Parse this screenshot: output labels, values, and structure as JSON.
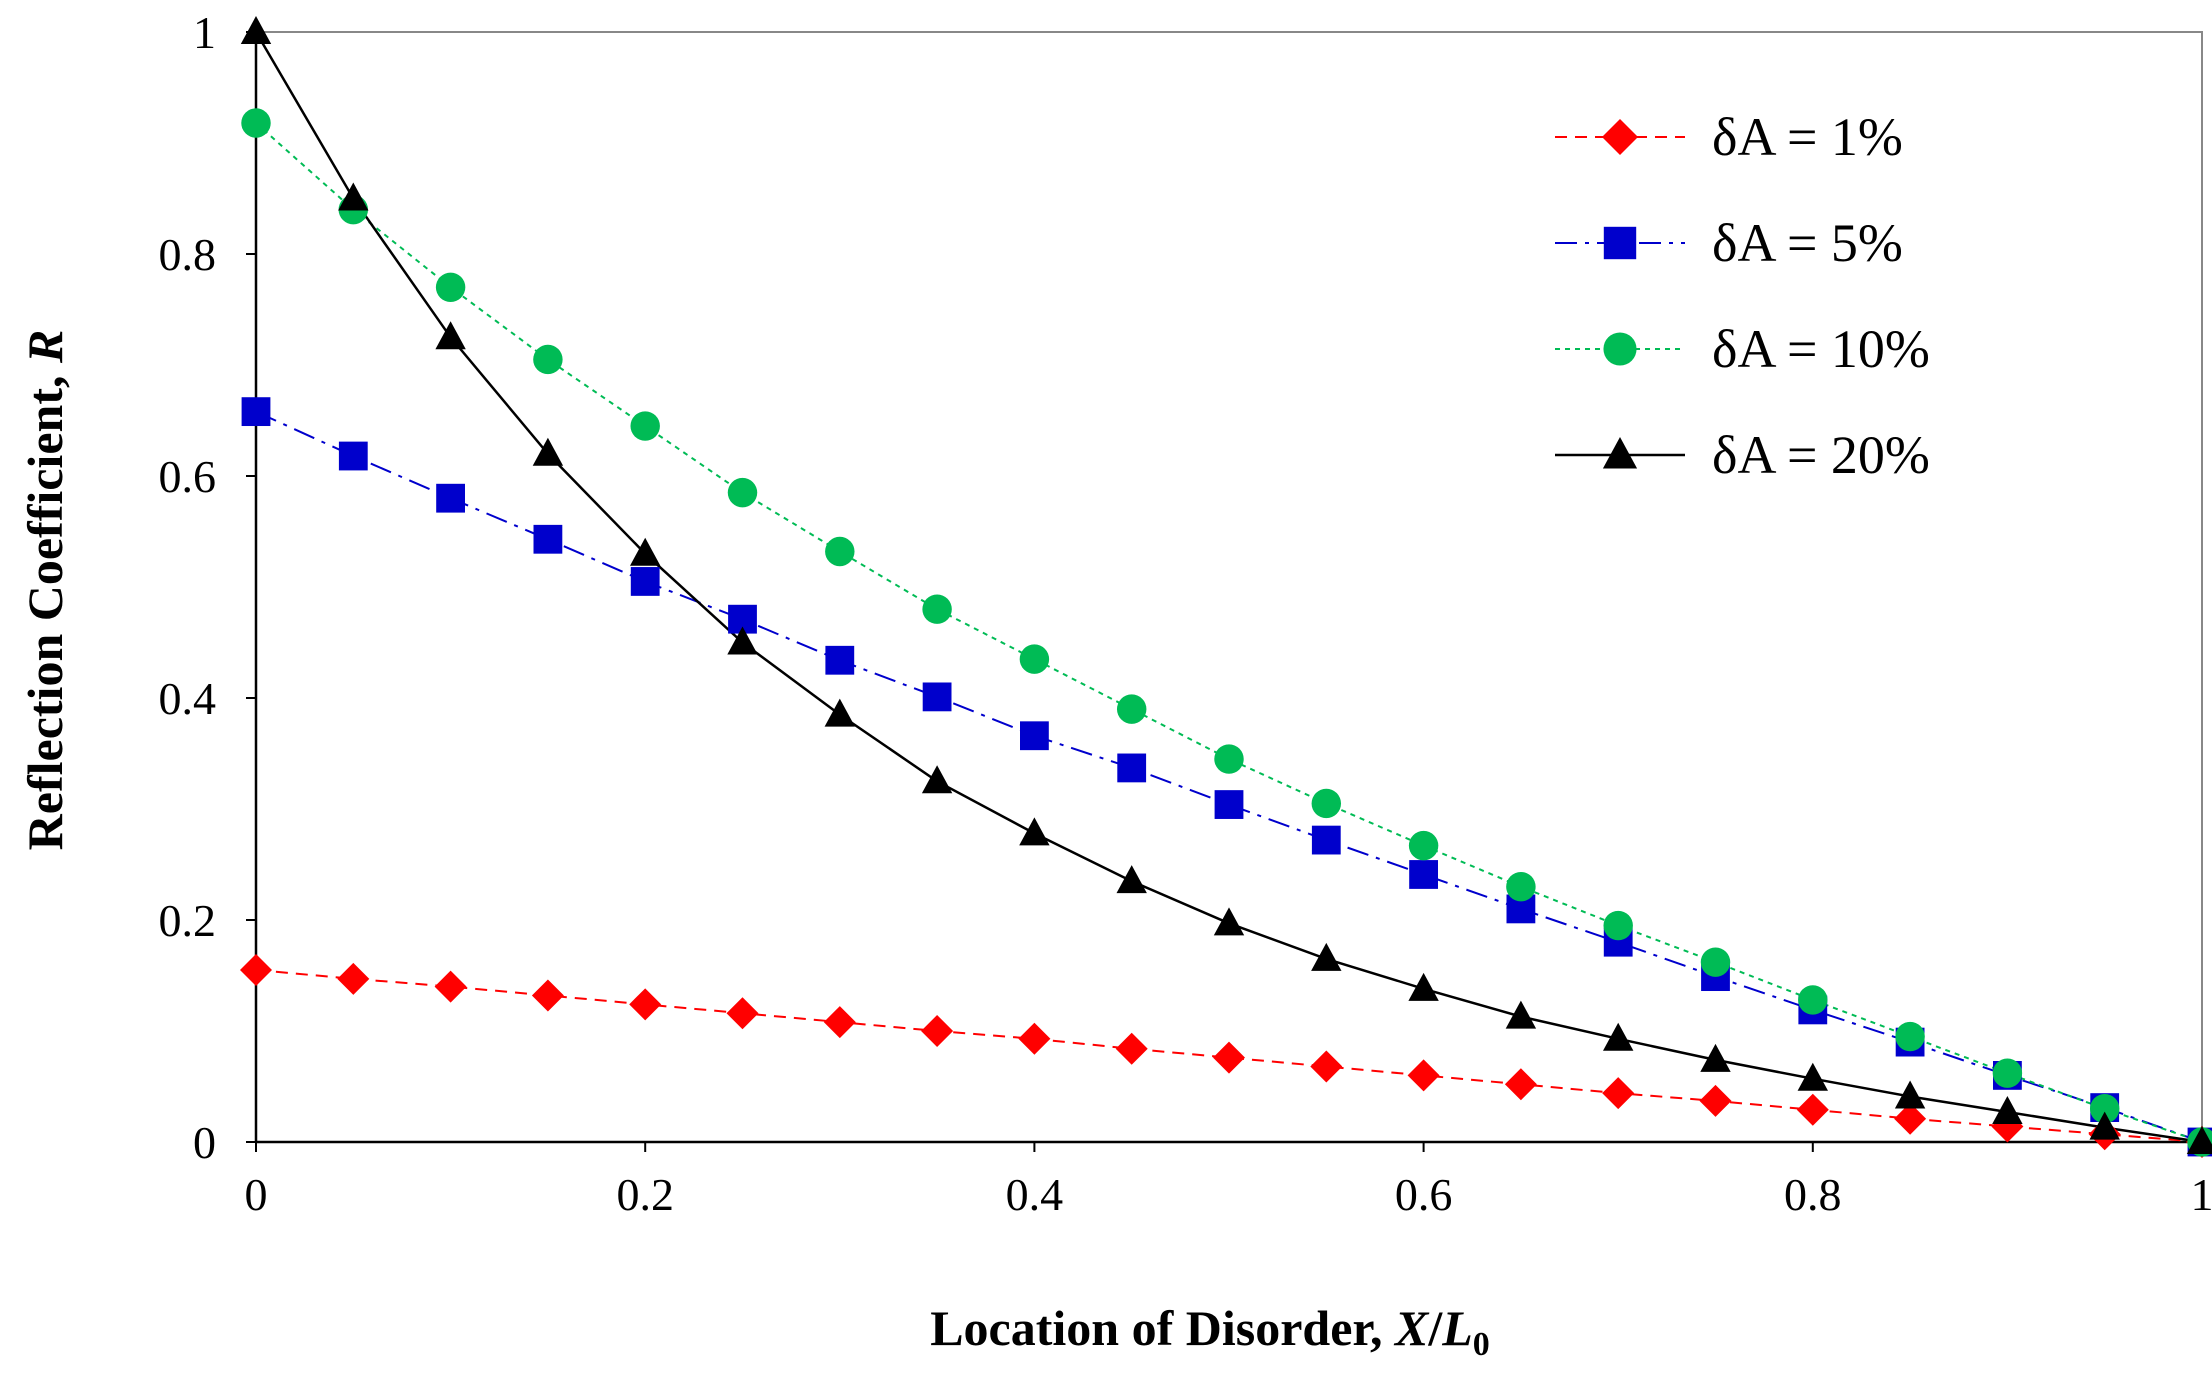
{
  "chart_data": {
    "type": "line",
    "title": "",
    "xlabel": "Location of Disorder, ",
    "xlabel_italic": "X",
    "xlabel_sep": "/",
    "xlabel_italic2": "L",
    "xlabel_sub": "0",
    "ylabel": "Reflection Coefficient, ",
    "ylabel_italic": "R",
    "xlim": [
      0,
      1
    ],
    "ylim": [
      0,
      1
    ],
    "x_ticks": [
      0,
      0.2,
      0.4,
      0.6,
      0.8,
      1
    ],
    "x_tick_labels": [
      "0",
      "0.2",
      "0.4",
      "0.6",
      "0.8",
      "1"
    ],
    "y_ticks": [
      0,
      0.2,
      0.4,
      0.6,
      0.8,
      1
    ],
    "y_tick_labels": [
      "0",
      "0.2",
      "0.4",
      "0.6",
      "0.8",
      "1"
    ],
    "grid": false,
    "legend_position": "top-right",
    "x": [
      0,
      0.05,
      0.1,
      0.15,
      0.2,
      0.25,
      0.3,
      0.35,
      0.4,
      0.45,
      0.5,
      0.55,
      0.6,
      0.65,
      0.7,
      0.75,
      0.8,
      0.85,
      0.9,
      0.95,
      1.0
    ],
    "series": [
      {
        "name": "δA = 1%",
        "color": "#ff0000",
        "marker": "diamond",
        "line_style": "dashed",
        "values": [
          0.155,
          0.147,
          0.14,
          0.132,
          0.124,
          0.116,
          0.108,
          0.1,
          0.093,
          0.084,
          0.076,
          0.068,
          0.06,
          0.052,
          0.044,
          0.037,
          0.029,
          0.021,
          0.014,
          0.007,
          0.0
        ]
      },
      {
        "name": "δA = 5%",
        "color": "#0000cc",
        "marker": "square",
        "line_style": "dashdot",
        "values": [
          0.658,
          0.618,
          0.58,
          0.543,
          0.505,
          0.471,
          0.434,
          0.401,
          0.366,
          0.337,
          0.304,
          0.272,
          0.241,
          0.21,
          0.18,
          0.149,
          0.119,
          0.09,
          0.06,
          0.031,
          0.0
        ]
      },
      {
        "name": "δA = 10%",
        "color": "#00bb55",
        "marker": "circle",
        "line_style": "dotted",
        "values": [
          0.918,
          0.84,
          0.77,
          0.705,
          0.645,
          0.585,
          0.532,
          0.48,
          0.435,
          0.39,
          0.345,
          0.305,
          0.267,
          0.23,
          0.195,
          0.162,
          0.128,
          0.095,
          0.062,
          0.03,
          0.0
        ]
      },
      {
        "name": "δA = 20%",
        "color": "#000000",
        "marker": "triangle",
        "line_style": "solid",
        "values": [
          1.0,
          0.85,
          0.725,
          0.62,
          0.53,
          0.45,
          0.385,
          0.325,
          0.278,
          0.235,
          0.197,
          0.165,
          0.138,
          0.113,
          0.093,
          0.074,
          0.057,
          0.041,
          0.027,
          0.013,
          0.0
        ]
      }
    ]
  }
}
